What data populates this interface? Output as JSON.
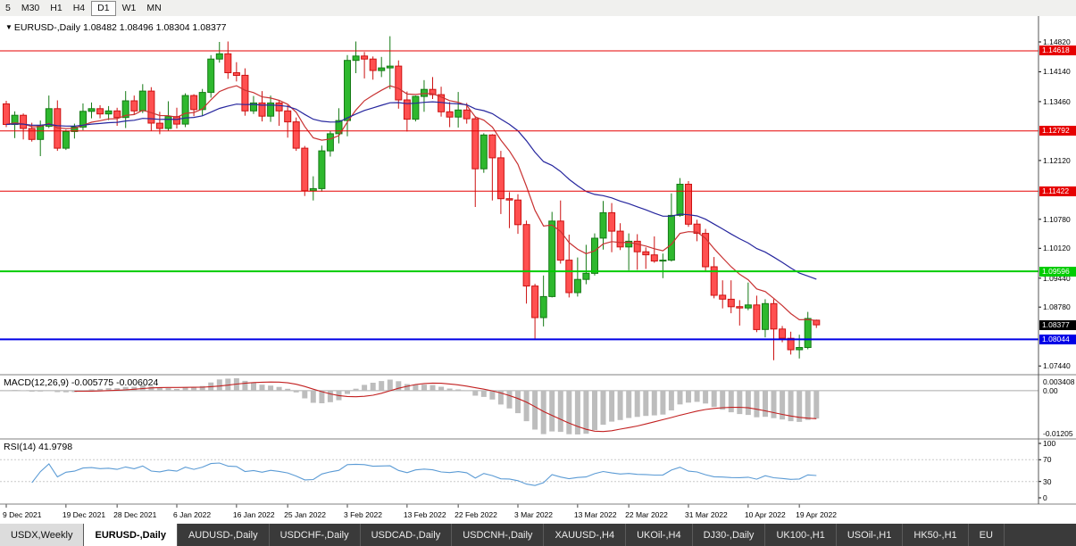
{
  "toolbar": {
    "timeframes": [
      "5",
      "M30",
      "H1",
      "H4",
      "D1",
      "W1",
      "MN"
    ],
    "active": "D1"
  },
  "chart_header": {
    "symbol_label": "EURUSD-,Daily",
    "ohlc_text": "1.08482 1.08496 1.08304 1.08377"
  },
  "indicators": {
    "macd": {
      "label": "MACD(12,26,9) -0.005775 -0.006024",
      "params": {
        "fast": 12,
        "slow": 26,
        "signal": 9
      },
      "axis_labels": [
        "0.003408",
        "0.00",
        "-0.01205"
      ],
      "histogram_color": "#bdbdbd",
      "signal_color": "#c22020"
    },
    "rsi": {
      "label": "RSI(14) 41.9798",
      "period": 14,
      "axis_labels": [
        "100",
        "70",
        "30",
        "0"
      ],
      "levels": [
        70,
        30
      ],
      "line_color": "#5b9bd5"
    }
  },
  "price_axis": {
    "ticks": [
      {
        "v": 1.1482,
        "t": "1.14820"
      },
      {
        "v": 1.1414,
        "t": "1.14140"
      },
      {
        "v": 1.1346,
        "t": "1.13460"
      },
      {
        "v": 1.1212,
        "t": "1.12120"
      },
      {
        "v": 1.1078,
        "t": "1.10780"
      },
      {
        "v": 1.1012,
        "t": "1.10120"
      },
      {
        "v": 1.0944,
        "t": "1.09440"
      },
      {
        "v": 1.0878,
        "t": "1.08780"
      },
      {
        "v": 1.0744,
        "t": "1.07440"
      }
    ]
  },
  "time_axis": {
    "ticks": [
      {
        "i": 0,
        "t": "9 Dec 2021"
      },
      {
        "i": 7,
        "t": "19 Dec 2021"
      },
      {
        "i": 13,
        "t": "28 Dec 2021"
      },
      {
        "i": 20,
        "t": "6 Jan 2022"
      },
      {
        "i": 27,
        "t": "16 Jan 2022"
      },
      {
        "i": 33,
        "t": "25 Jan 2022"
      },
      {
        "i": 40,
        "t": "3 Feb 2022"
      },
      {
        "i": 47,
        "t": "13 Feb 2022"
      },
      {
        "i": 53,
        "t": "22 Feb 2022"
      },
      {
        "i": 60,
        "t": "3 Mar 2022"
      },
      {
        "i": 67,
        "t": "13 Mar 2022"
      },
      {
        "i": 73,
        "t": "22 Mar 2022"
      },
      {
        "i": 80,
        "t": "31 Mar 2022"
      },
      {
        "i": 87,
        "t": "10 Apr 2022"
      },
      {
        "i": 93,
        "t": "19 Apr 2022"
      }
    ]
  },
  "hlines": [
    {
      "v": 1.14618,
      "t": "1.14618",
      "color": "#e60000",
      "w": 1
    },
    {
      "v": 1.12792,
      "t": "1.12792",
      "color": "#e60000",
      "w": 1
    },
    {
      "v": 1.11422,
      "t": "1.11422",
      "color": "#e60000",
      "w": 1
    },
    {
      "v": 1.09596,
      "t": "1.09596",
      "color": "#00cc00",
      "w": 2
    },
    {
      "v": 1.08044,
      "t": "1.08044",
      "color": "#0000e6",
      "w": 2
    }
  ],
  "current_price_tag": {
    "v": 1.08377,
    "t": "1.08377",
    "bg": "#000000"
  },
  "chart_data": {
    "type": "candlestick",
    "symbol": "EURUSD-",
    "timeframe": "Daily",
    "start_date": "9 Dec 2021",
    "ylim": [
      1.0724,
      1.1541
    ],
    "up": {
      "fill": "#2eb82e",
      "stroke": "#157a15"
    },
    "down": {
      "fill": "#ff5050",
      "stroke": "#cc1111"
    },
    "ma": [
      {
        "type": "ema",
        "period": 10,
        "color": "#c83232"
      },
      {
        "type": "ema",
        "period": 30,
        "color": "#26269e"
      }
    ],
    "candles": [
      [
        1.1341,
        1.1348,
        1.1288,
        1.1294
      ],
      [
        1.1294,
        1.1324,
        1.1263,
        1.1315
      ],
      [
        1.1315,
        1.1319,
        1.126,
        1.1285
      ],
      [
        1.1285,
        1.1298,
        1.1255,
        1.126
      ],
      [
        1.126,
        1.1303,
        1.1222,
        1.129
      ],
      [
        1.129,
        1.136,
        1.1286,
        1.133
      ],
      [
        1.133,
        1.1349,
        1.1234,
        1.124
      ],
      [
        1.124,
        1.1282,
        1.1236,
        1.1278
      ],
      [
        1.1278,
        1.1296,
        1.1262,
        1.1288
      ],
      [
        1.1288,
        1.1342,
        1.1281,
        1.1324
      ],
      [
        1.1324,
        1.1344,
        1.1308,
        1.133
      ],
      [
        1.133,
        1.1338,
        1.1308,
        1.1318
      ],
      [
        1.1318,
        1.1336,
        1.1304,
        1.1325
      ],
      [
        1.1325,
        1.1332,
        1.1291,
        1.131
      ],
      [
        1.131,
        1.137,
        1.1286,
        1.1348
      ],
      [
        1.1348,
        1.136,
        1.1316,
        1.1325
      ],
      [
        1.1325,
        1.1386,
        1.132,
        1.137
      ],
      [
        1.137,
        1.1379,
        1.1279,
        1.1297
      ],
      [
        1.1297,
        1.1323,
        1.1272,
        1.1285
      ],
      [
        1.1285,
        1.1347,
        1.128,
        1.1312
      ],
      [
        1.1312,
        1.1332,
        1.1285,
        1.1295
      ],
      [
        1.1295,
        1.1365,
        1.1288,
        1.136
      ],
      [
        1.136,
        1.1363,
        1.1313,
        1.1328
      ],
      [
        1.1328,
        1.1375,
        1.1314,
        1.1367
      ],
      [
        1.1367,
        1.1452,
        1.1355,
        1.1443
      ],
      [
        1.1443,
        1.1482,
        1.1435,
        1.1455
      ],
      [
        1.1455,
        1.1483,
        1.1398,
        1.1412
      ],
      [
        1.1412,
        1.1436,
        1.1392,
        1.1406
      ],
      [
        1.1406,
        1.1422,
        1.1314,
        1.1325
      ],
      [
        1.1325,
        1.1359,
        1.1318,
        1.1343
      ],
      [
        1.1343,
        1.137,
        1.1301,
        1.1313
      ],
      [
        1.1313,
        1.136,
        1.13,
        1.1343
      ],
      [
        1.1343,
        1.1349,
        1.1291,
        1.1325
      ],
      [
        1.1325,
        1.1338,
        1.1264,
        1.13
      ],
      [
        1.13,
        1.131,
        1.1234,
        1.124
      ],
      [
        1.124,
        1.1245,
        1.1131,
        1.1143
      ],
      [
        1.1143,
        1.1176,
        1.1121,
        1.1148
      ],
      [
        1.1148,
        1.1246,
        1.1141,
        1.1234
      ],
      [
        1.1234,
        1.1279,
        1.1221,
        1.1273
      ],
      [
        1.1273,
        1.1331,
        1.1251,
        1.1303
      ],
      [
        1.1303,
        1.1452,
        1.1267,
        1.144
      ],
      [
        1.144,
        1.1483,
        1.1411,
        1.145
      ],
      [
        1.145,
        1.1459,
        1.1399,
        1.1443
      ],
      [
        1.1443,
        1.1449,
        1.1396,
        1.1417
      ],
      [
        1.1417,
        1.1448,
        1.1402,
        1.1423
      ],
      [
        1.1423,
        1.1495,
        1.1375,
        1.1427
      ],
      [
        1.1427,
        1.144,
        1.133,
        1.135
      ],
      [
        1.135,
        1.1369,
        1.1278,
        1.1306
      ],
      [
        1.1306,
        1.136,
        1.1301,
        1.1358
      ],
      [
        1.1358,
        1.1395,
        1.1323,
        1.1374
      ],
      [
        1.1374,
        1.1402,
        1.1352,
        1.1362
      ],
      [
        1.1362,
        1.138,
        1.1312,
        1.1323
      ],
      [
        1.1323,
        1.1345,
        1.1288,
        1.1311
      ],
      [
        1.1311,
        1.1368,
        1.1287,
        1.1327
      ],
      [
        1.1327,
        1.1343,
        1.1296,
        1.1307
      ],
      [
        1.1307,
        1.1313,
        1.1106,
        1.1193
      ],
      [
        1.1193,
        1.1274,
        1.1184,
        1.127
      ],
      [
        1.127,
        1.1272,
        1.1121,
        1.1218
      ],
      [
        1.1218,
        1.1234,
        1.109,
        1.1125
      ],
      [
        1.1125,
        1.114,
        1.1058,
        1.1122
      ],
      [
        1.1122,
        1.1135,
        1.1045,
        1.1066
      ],
      [
        1.1066,
        1.1075,
        1.0886,
        1.0926
      ],
      [
        1.0926,
        1.0931,
        1.0806,
        1.0854
      ],
      [
        1.0854,
        1.095,
        1.0834,
        1.0902
      ],
      [
        1.0902,
        1.1095,
        1.09,
        1.1074
      ],
      [
        1.1074,
        1.1121,
        1.0977,
        1.0985
      ],
      [
        1.0985,
        1.1043,
        1.09,
        1.0911
      ],
      [
        1.0911,
        1.0991,
        1.0902,
        1.0941
      ],
      [
        1.0941,
        1.102,
        1.093,
        1.0955
      ],
      [
        1.0955,
        1.1046,
        1.095,
        1.1035
      ],
      [
        1.1035,
        1.112,
        1.1009,
        1.1093
      ],
      [
        1.1093,
        1.1115,
        1.1003,
        1.1051
      ],
      [
        1.1051,
        1.1069,
        1.1008,
        1.1015
      ],
      [
        1.1015,
        1.1046,
        1.0962,
        1.1028
      ],
      [
        1.1028,
        1.1044,
        1.0963,
        1.1004
      ],
      [
        1.1004,
        1.1014,
        1.0965,
        1.0997
      ],
      [
        1.0997,
        1.1039,
        1.0979,
        1.0983
      ],
      [
        1.0983,
        1.1,
        1.0944,
        1.0985
      ],
      [
        1.0985,
        1.1137,
        1.0982,
        1.1087
      ],
      [
        1.1087,
        1.1172,
        1.1084,
        1.1158
      ],
      [
        1.1158,
        1.1165,
        1.1061,
        1.1067
      ],
      [
        1.1067,
        1.1077,
        1.1028,
        1.1046
      ],
      [
        1.1046,
        1.1056,
        1.0961,
        1.097
      ],
      [
        1.097,
        1.0992,
        1.0898,
        1.0905
      ],
      [
        1.0905,
        1.0939,
        1.0875,
        1.0896
      ],
      [
        1.0896,
        1.0939,
        1.0864,
        1.0879
      ],
      [
        1.0879,
        1.0894,
        1.0836,
        1.0876
      ],
      [
        1.0876,
        1.0934,
        1.0871,
        1.0883
      ],
      [
        1.0883,
        1.0904,
        1.0821,
        1.0827
      ],
      [
        1.0827,
        1.0896,
        1.0809,
        1.0886
      ],
      [
        1.0886,
        1.0896,
        1.0757,
        1.0828
      ],
      [
        1.0828,
        1.0835,
        1.0798,
        1.0807
      ],
      [
        1.0807,
        1.0822,
        1.077,
        1.0781
      ],
      [
        1.0781,
        1.0815,
        1.0761,
        1.0786
      ],
      [
        1.0786,
        1.0867,
        1.0782,
        1.0852
      ],
      [
        1.08482,
        1.08496,
        1.08304,
        1.08377
      ]
    ]
  },
  "tabbar": {
    "tabs": [
      {
        "label": "USDX,Weekly",
        "style": "light"
      },
      {
        "label": "EURUSD-,Daily",
        "style": "active"
      },
      {
        "label": "AUDUSD-,Daily"
      },
      {
        "label": "USDCHF-,Daily"
      },
      {
        "label": "USDCAD-,Daily"
      },
      {
        "label": "USDCNH-,Daily"
      },
      {
        "label": "XAUUSD-,H4"
      },
      {
        "label": "UKOil-,H4"
      },
      {
        "label": "DJ30-,Daily"
      },
      {
        "label": "UK100-,H1"
      },
      {
        "label": "USOil-,H1"
      },
      {
        "label": "HK50-,H1"
      },
      {
        "label": "EU"
      }
    ]
  }
}
